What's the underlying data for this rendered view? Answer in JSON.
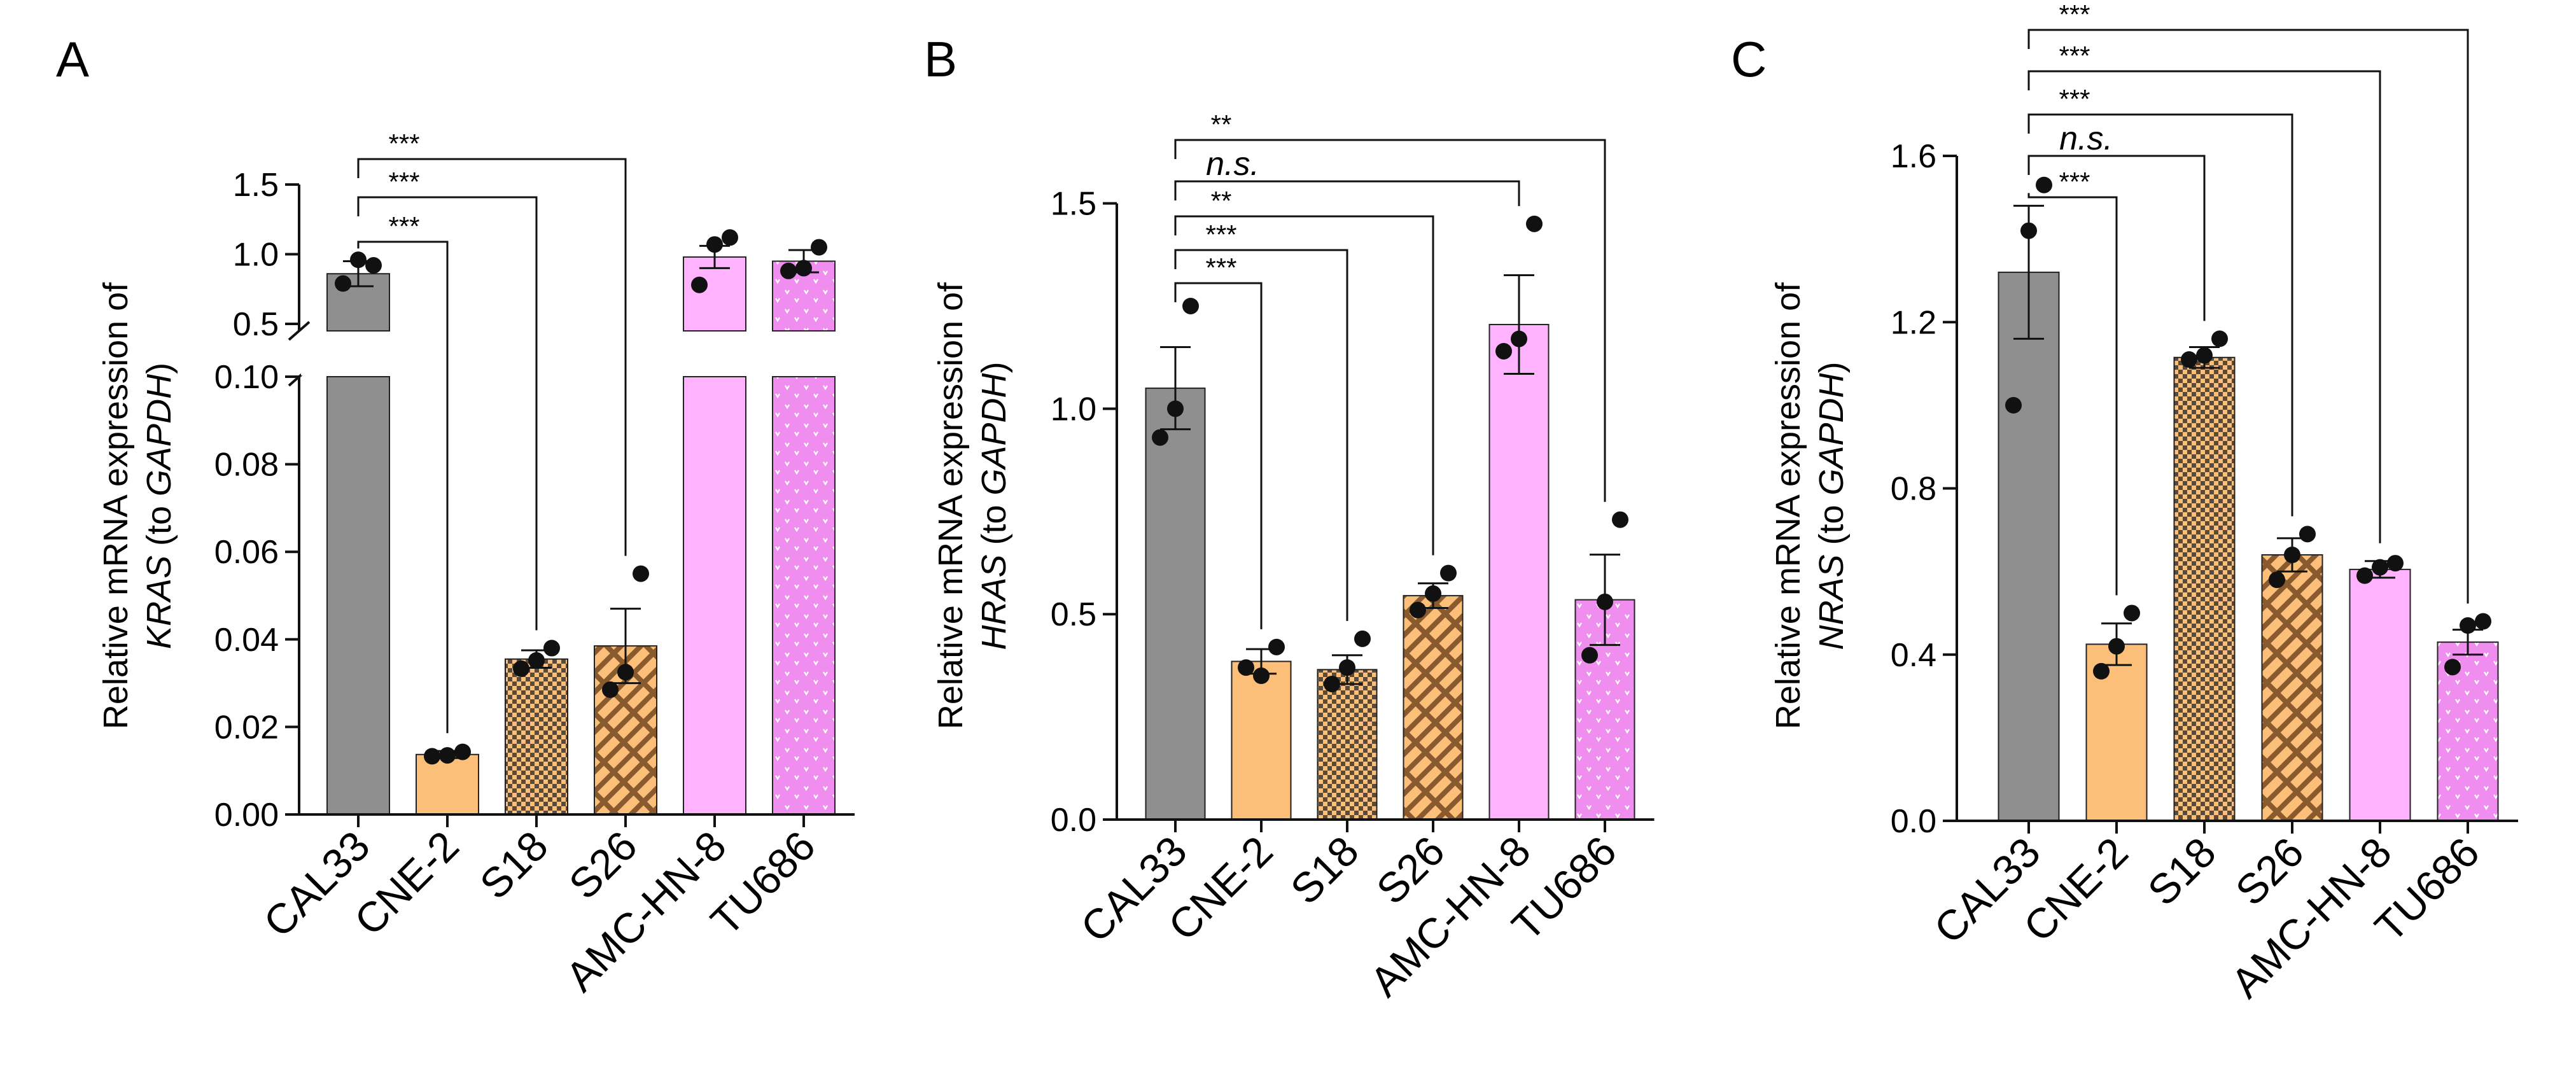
{
  "figure": {
    "panels": [
      "A",
      "B",
      "C"
    ]
  },
  "pattern_colors": {
    "CAL33": "#8f8f8f",
    "CNE-2": "#fbbf7a",
    "S18_bg": "#fbbf7a",
    "S18_fg": "#5b4a37",
    "S26_bg": "#fbbf7a",
    "S26_fg": "#8a5a2f",
    "AMC-HN-8": "#ffb3ff",
    "TU686_bg": "#f08ef0",
    "TU686_fg": "#ffffff"
  },
  "chart_data": [
    {
      "panel": "A",
      "type": "bar",
      "broken_axis": true,
      "categories": [
        "CAL33",
        "CNE-2",
        "S18",
        "S26",
        "AMC-HN-8",
        "TU686"
      ],
      "fills": [
        "solid-gray",
        "solid-orange",
        "checker",
        "weave",
        "solid-pink",
        "dotted-pink"
      ],
      "values": [
        0.86,
        0.0137,
        0.0355,
        0.0385,
        0.98,
        0.95
      ],
      "errors": [
        0.09,
        0.0008,
        0.002,
        0.0085,
        0.08,
        0.08
      ],
      "points": [
        [
          0.79,
          0.96,
          0.92
        ],
        [
          0.0133,
          0.0135,
          0.0143
        ],
        [
          0.0333,
          0.0352,
          0.038
        ],
        [
          0.0285,
          0.0325,
          0.055
        ],
        [
          0.78,
          1.07,
          1.12
        ],
        [
          0.88,
          0.9,
          1.05
        ]
      ],
      "ylabel_pre": "Relative mRNA expression of",
      "ylabel_gene": "KRAS",
      "ylabel_mid": " (to ",
      "ylabel_ref": "GAPDH",
      "ylabel_post": ")",
      "lower_axis": {
        "ylim": [
          0,
          0.1
        ],
        "ticks": [
          0.0,
          0.02,
          0.04,
          0.06,
          0.08,
          0.1
        ],
        "tick_labels": [
          "0.00",
          "0.02",
          "0.04",
          "0.06",
          "0.08",
          "0.10"
        ]
      },
      "upper_axis": {
        "ylim": [
          0.45,
          1.5
        ],
        "ticks": [
          0.5,
          1.0,
          1.5
        ],
        "tick_labels": [
          "0.5",
          "1.0",
          "1.5"
        ]
      },
      "comparisons": [
        {
          "from": 0,
          "to": 1,
          "label": "***"
        },
        {
          "from": 0,
          "to": 2,
          "label": "***"
        },
        {
          "from": 0,
          "to": 3,
          "label": "***"
        }
      ]
    },
    {
      "panel": "B",
      "type": "bar",
      "broken_axis": false,
      "categories": [
        "CAL33",
        "CNE-2",
        "S18",
        "S26",
        "AMC-HN-8",
        "TU686"
      ],
      "fills": [
        "solid-gray",
        "solid-orange",
        "checker",
        "weave",
        "solid-pink",
        "dotted-pink"
      ],
      "values": [
        1.05,
        0.385,
        0.365,
        0.545,
        1.205,
        0.535
      ],
      "errors": [
        0.1,
        0.03,
        0.035,
        0.03,
        0.12,
        0.11
      ],
      "points": [
        [
          0.93,
          1.0,
          1.25
        ],
        [
          0.37,
          0.35,
          0.42
        ],
        [
          0.33,
          0.37,
          0.44
        ],
        [
          0.51,
          0.55,
          0.6
        ],
        [
          1.14,
          1.17,
          1.45
        ],
        [
          0.4,
          0.53,
          0.73
        ]
      ],
      "ylabel_pre": "Relative mRNA expression of",
      "ylabel_gene": "HRAS",
      "ylabel_mid": " (to ",
      "ylabel_ref": "GAPDH",
      "ylabel_post": ")",
      "ylim": [
        0,
        1.6
      ],
      "ticks": [
        0.0,
        0.5,
        1.0,
        1.5
      ],
      "tick_labels": [
        "0.0",
        "0.5",
        "1.0",
        "1.5"
      ],
      "comparisons": [
        {
          "from": 0,
          "to": 1,
          "label": "***"
        },
        {
          "from": 0,
          "to": 2,
          "label": "***"
        },
        {
          "from": 0,
          "to": 3,
          "label": "**"
        },
        {
          "from": 0,
          "to": 4,
          "label": "n.s."
        },
        {
          "from": 0,
          "to": 5,
          "label": "**"
        }
      ]
    },
    {
      "panel": "C",
      "type": "bar",
      "broken_axis": false,
      "categories": [
        "CAL33",
        "CNE-2",
        "S18",
        "S26",
        "AMC-HN-8",
        "TU686"
      ],
      "fills": [
        "solid-gray",
        "solid-orange",
        "checker",
        "weave",
        "solid-pink",
        "dotted-pink"
      ],
      "values": [
        1.32,
        0.425,
        1.115,
        0.64,
        0.605,
        0.43
      ],
      "errors": [
        0.16,
        0.05,
        0.025,
        0.04,
        0.02,
        0.03
      ],
      "points": [
        [
          1.0,
          1.42,
          1.53
        ],
        [
          0.36,
          0.42,
          0.5
        ],
        [
          1.11,
          1.12,
          1.16
        ],
        [
          0.58,
          0.64,
          0.69
        ],
        [
          0.59,
          0.61,
          0.62
        ],
        [
          0.37,
          0.47,
          0.48
        ]
      ],
      "ylabel_pre": "Relative mRNA expression of",
      "ylabel_gene": "NRAS",
      "ylabel_mid": " (to ",
      "ylabel_ref": "GAPDH",
      "ylabel_post": ")",
      "ylim": [
        0,
        1.6
      ],
      "ticks": [
        0.0,
        0.4,
        0.8,
        1.2,
        1.6
      ],
      "tick_labels": [
        "0.0",
        "0.4",
        "0.8",
        "1.2",
        "1.6"
      ],
      "comparisons": [
        {
          "from": 0,
          "to": 1,
          "label": "***"
        },
        {
          "from": 0,
          "to": 2,
          "label": "n.s."
        },
        {
          "from": 0,
          "to": 3,
          "label": "***"
        },
        {
          "from": 0,
          "to": 4,
          "label": "***"
        },
        {
          "from": 0,
          "to": 5,
          "label": "***"
        }
      ]
    }
  ]
}
